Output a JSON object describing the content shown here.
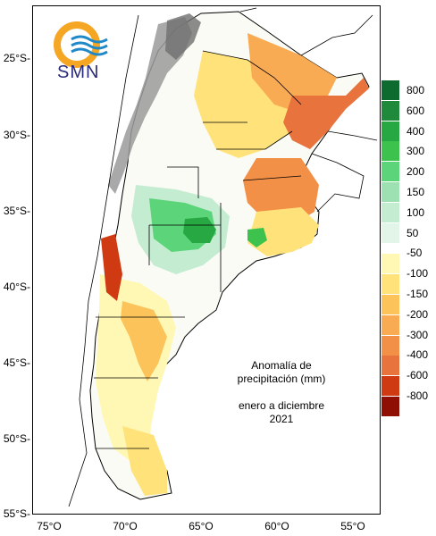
{
  "logo": {
    "text": "SMN"
  },
  "annotation": {
    "line1": "Anomalía de",
    "line2": "precipitación (mm)",
    "line3": "enero a diciembre",
    "line4": "2021"
  },
  "lat_labels": [
    "25°S-",
    "30°S-",
    "35°S-",
    "40°S-",
    "45°S-",
    "50°S-",
    "55°S-"
  ],
  "lon_labels": [
    "75°O",
    "70°O",
    "65°O",
    "60°O",
    "55°O"
  ],
  "legend": {
    "positive": [
      {
        "label": "800",
        "color": "#0e6b2f"
      },
      {
        "label": "600",
        "color": "#1f8a3c"
      },
      {
        "label": "400",
        "color": "#27a843"
      },
      {
        "label": "300",
        "color": "#3cc24d"
      },
      {
        "label": "200",
        "color": "#5bd47a"
      },
      {
        "label": "150",
        "color": "#9de0b2"
      },
      {
        "label": "100",
        "color": "#c4ecd1"
      },
      {
        "label": "50",
        "color": "#e3f5e9"
      }
    ],
    "negative": [
      {
        "label": "-50",
        "color": "#fff8b5"
      },
      {
        "label": "-100",
        "color": "#ffe37a"
      },
      {
        "label": "-150",
        "color": "#fcc35a"
      },
      {
        "label": "-200",
        "color": "#f9ab53"
      },
      {
        "label": "-300",
        "color": "#f39048"
      },
      {
        "label": "-400",
        "color": "#e8733c"
      },
      {
        "label": "-600",
        "color": "#cf3a12"
      },
      {
        "label": "-800",
        "color": "#8f0f05"
      }
    ]
  }
}
